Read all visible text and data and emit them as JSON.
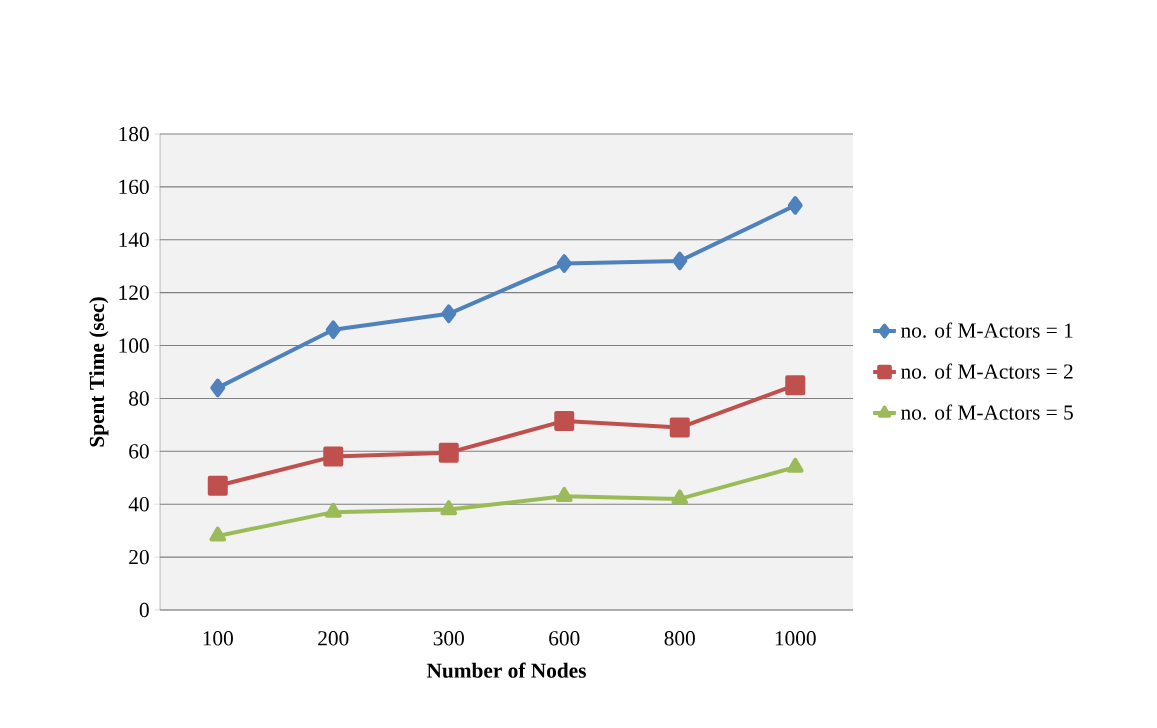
{
  "chart_data": {
    "type": "line",
    "xlabel": "Number of Nodes",
    "ylabel": "Spent Time (sec)",
    "categories": [
      "100",
      "200",
      "300",
      "600",
      "800",
      "1000"
    ],
    "series": [
      {
        "name": "no. of M-Actors = 1",
        "color": "#4f81bd",
        "marker": "diamond",
        "values": [
          84,
          106,
          112,
          131,
          132,
          153
        ]
      },
      {
        "name": "no. of M-Actors = 2",
        "color": "#c0504d",
        "marker": "square",
        "values": [
          47,
          58,
          59.5,
          71.5,
          69,
          85
        ]
      },
      {
        "name": "no. of M-Actors = 5",
        "color": "#9bbb59",
        "marker": "triangle",
        "values": [
          28,
          37,
          38,
          43,
          42,
          54
        ]
      }
    ],
    "ylim": [
      0,
      180
    ],
    "yticks": [
      0,
      20,
      40,
      60,
      80,
      100,
      120,
      140,
      160,
      180
    ],
    "grid": "y",
    "legend": "right"
  }
}
